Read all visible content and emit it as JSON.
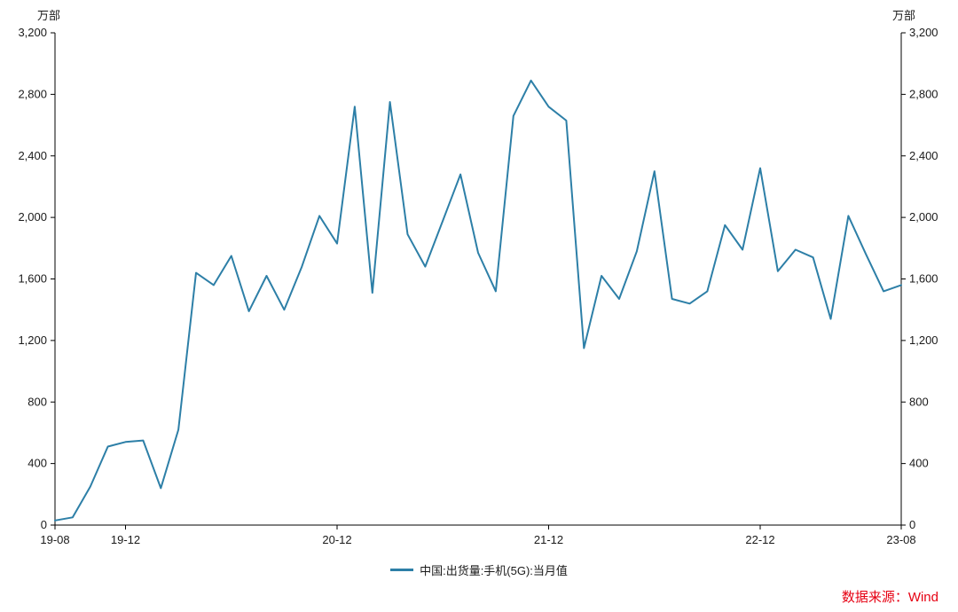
{
  "chart_data": {
    "type": "line",
    "title": "",
    "unit_left": "万部",
    "unit_right": "万部",
    "xlabel": "",
    "ylabel": "万部",
    "ylim": [
      0,
      3200
    ],
    "y_ticks": [
      0,
      400,
      800,
      1200,
      1600,
      2000,
      2400,
      2800,
      3200
    ],
    "x_tick_labels": [
      "19-08",
      "19-12",
      "20-12",
      "21-12",
      "22-12",
      "23-08"
    ],
    "x_tick_indices": [
      0,
      4,
      16,
      28,
      40,
      48
    ],
    "grid": false,
    "legend_position": "bottom",
    "categories": [
      "19-08",
      "19-09",
      "19-10",
      "19-11",
      "19-12",
      "20-01",
      "20-02",
      "20-03",
      "20-04",
      "20-05",
      "20-06",
      "20-07",
      "20-08",
      "20-09",
      "20-10",
      "20-11",
      "20-12",
      "21-01",
      "21-02",
      "21-03",
      "21-04",
      "21-05",
      "21-06",
      "21-07",
      "21-08",
      "21-09",
      "21-10",
      "21-11",
      "21-12",
      "22-01",
      "22-02",
      "22-03",
      "22-04",
      "22-05",
      "22-06",
      "22-07",
      "22-08",
      "22-09",
      "22-10",
      "22-11",
      "22-12",
      "23-01",
      "23-02",
      "23-03",
      "23-04",
      "23-05",
      "23-06",
      "23-07",
      "23-08"
    ],
    "series": [
      {
        "name": "中国:出货量:手机(5G):当月值",
        "color": "#2d7fa7",
        "values": [
          30,
          50,
          250,
          510,
          540,
          550,
          240,
          620,
          1640,
          1560,
          1750,
          1390,
          1620,
          1400,
          1680,
          2010,
          1830,
          2720,
          1510,
          2750,
          1890,
          1680,
          1980,
          2280,
          1770,
          1520,
          2660,
          2890,
          2720,
          2630,
          1150,
          1620,
          1470,
          1780,
          2300,
          1470,
          1440,
          1520,
          1950,
          1790,
          2320,
          1650,
          1790,
          1740,
          1340,
          2010,
          1760,
          1520,
          1560
        ]
      }
    ]
  },
  "legend": {
    "label": "中国:出货量:手机(5G):当月值"
  },
  "footer": {
    "source_label": "数据来源：Wind",
    "source_color": "#e60012"
  },
  "colors": {
    "axis": "#000000",
    "tick_text": "#1a1a1a",
    "line": "#2d7fa7"
  }
}
